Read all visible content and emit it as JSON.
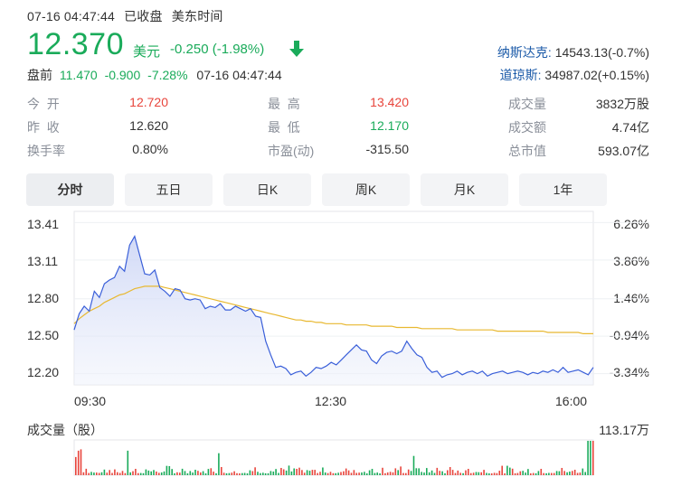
{
  "header": {
    "timestamp": "07-16 04:47:44",
    "market_status": "已收盘",
    "timezone": "美东时间",
    "price": "12.370",
    "currency": "美元",
    "change": "-0.250 (-1.98%)",
    "direction_icon": "arrow-down-icon"
  },
  "premarket": {
    "label": "盘前",
    "price": "11.470",
    "change": "-0.900",
    "percent": "-7.28%",
    "time": "07-16 04:47:44"
  },
  "indices": [
    {
      "name": "纳斯达克:",
      "value": "14543.13(-0.7%)"
    },
    {
      "name": "道琼斯:",
      "value": "34987.02(+0.15%)"
    }
  ],
  "stats": {
    "col1": [
      {
        "label": "今  开",
        "value": "12.720",
        "color": "#e8453c"
      },
      {
        "label": "昨  收",
        "value": "12.620",
        "color": "#333333"
      },
      {
        "label": "换手率",
        "value": "0.80%",
        "color": "#333333"
      }
    ],
    "col2": [
      {
        "label": "最  高",
        "value": "13.420",
        "color": "#e8453c"
      },
      {
        "label": "最  低",
        "value": "12.170",
        "color": "#1aab5a"
      },
      {
        "label": "市盈(动)",
        "value": "-315.50",
        "color": "#333333"
      }
    ],
    "col3": [
      {
        "label": "成交量",
        "value": "3832万股",
        "color": "#333333"
      },
      {
        "label": "成交额",
        "value": "4.74亿",
        "color": "#333333"
      },
      {
        "label": "总市值",
        "value": "593.07亿",
        "color": "#333333"
      }
    ]
  },
  "tabs": [
    {
      "label": "分时",
      "active": true
    },
    {
      "label": "五日",
      "active": false
    },
    {
      "label": "日K",
      "active": false
    },
    {
      "label": "周K",
      "active": false
    },
    {
      "label": "月K",
      "active": false
    },
    {
      "label": "1年",
      "active": false
    }
  ],
  "colors": {
    "up": "#e8453c",
    "down": "#1aab5a",
    "price_line": "#3a5fd9",
    "avg_line": "#e8b830",
    "link": "#1b5aa8"
  },
  "chart_data": [
    {
      "type": "line",
      "y_ticks": [
        "13.41",
        "13.11",
        "12.80",
        "12.50",
        "12.20"
      ],
      "y_tick_values": [
        13.41,
        13.11,
        12.8,
        12.5,
        12.2
      ],
      "right_ticks": [
        "6.26%",
        "3.86%",
        "1.46%",
        "-0.94%",
        "-3.34%"
      ],
      "x_ticks": [
        "09:30",
        "12:30",
        "16:00"
      ],
      "ylim": [
        12.11,
        13.5
      ],
      "grid": true,
      "series": [
        {
          "values": [
            12.55,
            12.68,
            12.74,
            12.7,
            12.86,
            12.81,
            12.92,
            12.95,
            12.97,
            13.06,
            13.02,
            13.23,
            13.3,
            13.15,
            13.0,
            12.99,
            13.03,
            12.89,
            12.86,
            12.82,
            12.88,
            12.87,
            12.8,
            12.79,
            12.8,
            12.79,
            12.72,
            12.74,
            12.73,
            12.76,
            12.71,
            12.71,
            12.74,
            12.72,
            12.7,
            12.72,
            12.66,
            12.65,
            12.46,
            12.35,
            12.25,
            12.26,
            12.24,
            12.19,
            12.21,
            12.22,
            12.18,
            12.21,
            12.25,
            12.24,
            12.26,
            12.29,
            12.27,
            12.31,
            12.35,
            12.39,
            12.43,
            12.39,
            12.38,
            12.31,
            12.28,
            12.34,
            12.37,
            12.38,
            12.36,
            12.38,
            12.46,
            12.4,
            12.35,
            12.33,
            12.25,
            12.21,
            12.22,
            12.17,
            12.19,
            12.2,
            12.22,
            12.19,
            12.21,
            12.22,
            12.2,
            12.22,
            12.18,
            12.2,
            12.21,
            12.22,
            12.2,
            12.21,
            12.22,
            12.21,
            12.19,
            12.21,
            12.2,
            12.22,
            12.21,
            12.23,
            12.21,
            12.25,
            12.21,
            12.22,
            12.23,
            12.21,
            12.19,
            12.25
          ]
        },
        {
          "values": [
            12.6,
            12.64,
            12.67,
            12.7,
            12.72,
            12.74,
            12.77,
            12.79,
            12.81,
            12.83,
            12.84,
            12.86,
            12.88,
            12.89,
            12.9,
            12.9,
            12.9,
            12.9,
            12.89,
            12.88,
            12.87,
            12.86,
            12.85,
            12.84,
            12.83,
            12.82,
            12.81,
            12.8,
            12.79,
            12.78,
            12.77,
            12.76,
            12.75,
            12.74,
            12.73,
            12.72,
            12.71,
            12.7,
            12.69,
            12.68,
            12.67,
            12.66,
            12.65,
            12.64,
            12.63,
            12.63,
            12.62,
            12.62,
            12.61,
            12.61,
            12.6,
            12.6,
            12.6,
            12.6,
            12.59,
            12.59,
            12.59,
            12.59,
            12.59,
            12.58,
            12.58,
            12.58,
            12.58,
            12.58,
            12.57,
            12.57,
            12.57,
            12.57,
            12.57,
            12.56,
            12.56,
            12.56,
            12.56,
            12.56,
            12.56,
            12.56,
            12.55,
            12.55,
            12.55,
            12.55,
            12.55,
            12.55,
            12.55,
            12.55,
            12.54,
            12.54,
            12.54,
            12.54,
            12.54,
            12.54,
            12.54,
            12.54,
            12.54,
            12.54,
            12.53,
            12.53,
            12.53,
            12.53,
            12.53,
            12.53,
            12.53,
            12.52,
            12.52,
            12.52
          ]
        }
      ]
    },
    {
      "type": "bar",
      "title": "成交量（股）",
      "max_label": "113.17万",
      "ylim": [
        0,
        1131700
      ]
    }
  ]
}
